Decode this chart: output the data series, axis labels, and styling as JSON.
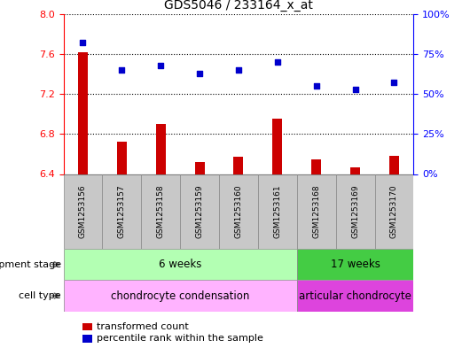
{
  "title": "GDS5046 / 233164_x_at",
  "samples": [
    "GSM1253156",
    "GSM1253157",
    "GSM1253158",
    "GSM1253159",
    "GSM1253160",
    "GSM1253161",
    "GSM1253168",
    "GSM1253169",
    "GSM1253170"
  ],
  "bar_values": [
    7.62,
    6.72,
    6.9,
    6.52,
    6.57,
    6.95,
    6.55,
    6.47,
    6.58
  ],
  "bar_base": 6.4,
  "blue_values": [
    82,
    65,
    68,
    63,
    65,
    70,
    55,
    53,
    57
  ],
  "ylim_left": [
    6.4,
    8.0
  ],
  "ylim_right": [
    0,
    100
  ],
  "yticks_left": [
    6.4,
    6.8,
    7.2,
    7.6,
    8.0
  ],
  "yticks_right": [
    0,
    25,
    50,
    75,
    100
  ],
  "ytick_labels_right": [
    "0%",
    "25%",
    "50%",
    "75%",
    "100%"
  ],
  "bar_color": "#cc0000",
  "dot_color": "#0000cc",
  "dev_stage_6w_color": "#b3ffb3",
  "dev_stage_17w_color": "#44cc44",
  "cell_type_cc_color": "#ffb3ff",
  "cell_type_ac_color": "#dd44dd",
  "dev_stage_6w_label": "6 weeks",
  "dev_stage_17w_label": "17 weeks",
  "cell_type_cc_label": "chondrocyte condensation",
  "cell_type_ac_label": "articular chondrocyte",
  "dev_stage_label": "development stage",
  "cell_type_label": "cell type",
  "legend_bar_label": "transformed count",
  "legend_dot_label": "percentile rank within the sample",
  "n_6w": 6,
  "n_17w": 3,
  "fig_width": 5.3,
  "fig_height": 3.93,
  "sample_box_color": "#c8c8c8",
  "grid_dotted_ticks": [
    6.8,
    7.2,
    7.6
  ]
}
